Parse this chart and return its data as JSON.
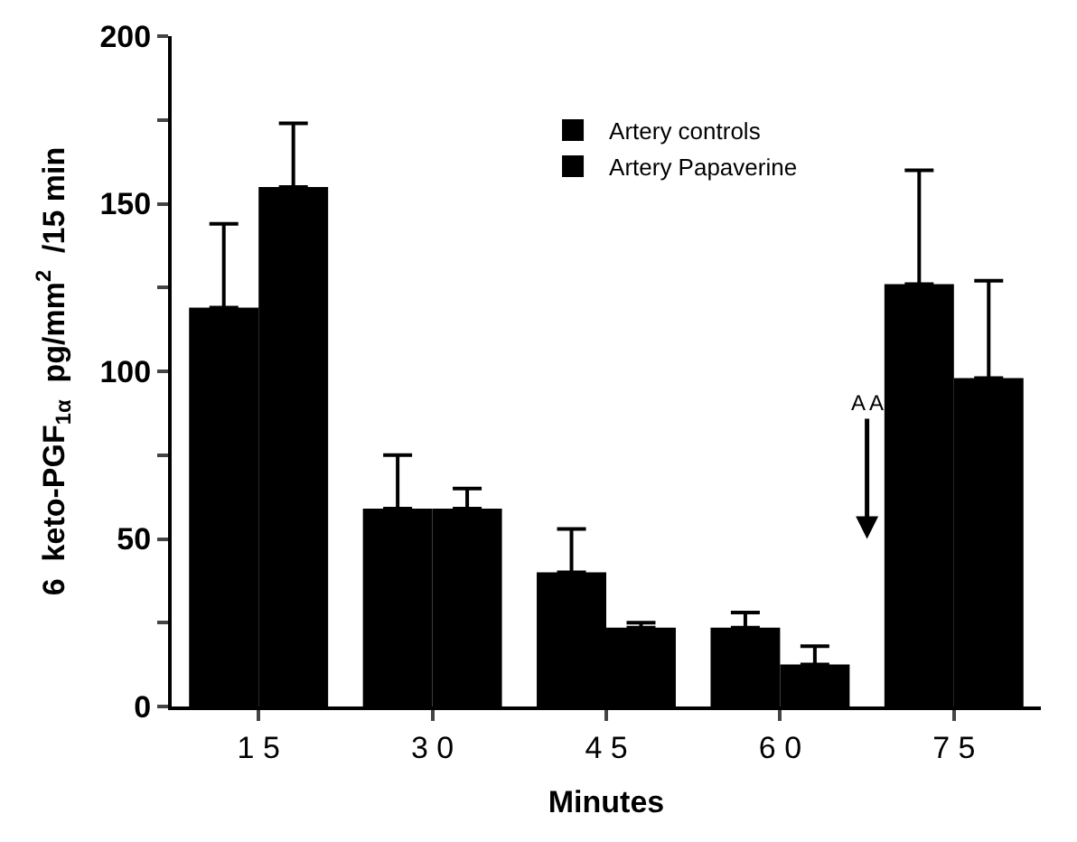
{
  "chart_data": {
    "type": "bar",
    "xlabel": "Minutes",
    "ylabel": "6  keto-PGF$_{1α}$  pg/mm$^{2}$  /15 min",
    "categories": [
      "1 5",
      "3 0",
      "4 5",
      "6 0",
      "7 5"
    ],
    "series": [
      {
        "name": "Artery controls",
        "color": "#000000",
        "values": [
          119,
          59,
          40,
          23.5,
          126
        ],
        "errors": [
          [
            119,
            144
          ],
          [
            59,
            75
          ],
          [
            40,
            53
          ],
          [
            23.5,
            28
          ],
          [
            126,
            160
          ]
        ]
      },
      {
        "name": "Artery Papaverine",
        "color": "#000000",
        "values": [
          155,
          59,
          23.5,
          12.5,
          98
        ],
        "errors": [
          [
            155,
            174
          ],
          [
            59,
            65
          ],
          [
            23.5,
            25
          ],
          [
            12.5,
            18
          ],
          [
            98,
            127
          ]
        ]
      }
    ],
    "ylim": [
      0,
      200
    ],
    "yticks": [
      0,
      {
        "value": 25,
        "label": null
      },
      50,
      {
        "value": 75,
        "label": null
      },
      100,
      {
        "value": 125,
        "label": null
      },
      150,
      {
        "value": 175,
        "label": null
      },
      200
    ],
    "annotations": [
      "A A"
    ],
    "legend": "top"
  }
}
